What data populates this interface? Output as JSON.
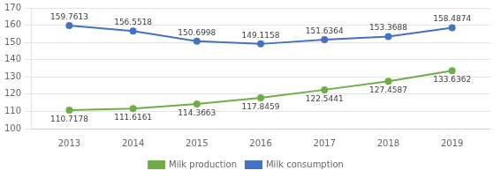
{
  "chart_data": {
    "type": "line",
    "x": [
      2013,
      2014,
      2015,
      2016,
      2017,
      2018,
      2019
    ],
    "series": [
      {
        "name": "Milk production",
        "color": "#70AD47",
        "marker": "circle",
        "values": [
          110.7178,
          111.6161,
          114.3663,
          117.8459,
          122.5441,
          127.4587,
          133.6362
        ]
      },
      {
        "name": "Milk consumption",
        "color": "#4472C4",
        "marker": "circle",
        "values": [
          159.7613,
          156.5518,
          150.6998,
          149.1158,
          151.6364,
          153.3688,
          158.4874
        ]
      }
    ],
    "xlim": [
      2012.4,
      2019.6
    ],
    "xticks": [
      2013,
      2014,
      2015,
      2016,
      2017,
      2018,
      2019
    ],
    "ylim": [
      100,
      170
    ],
    "yticks": [
      100,
      110,
      120,
      130,
      140,
      150,
      160,
      170
    ],
    "grid": true,
    "legend": "bottom",
    "data_labels": true
  }
}
